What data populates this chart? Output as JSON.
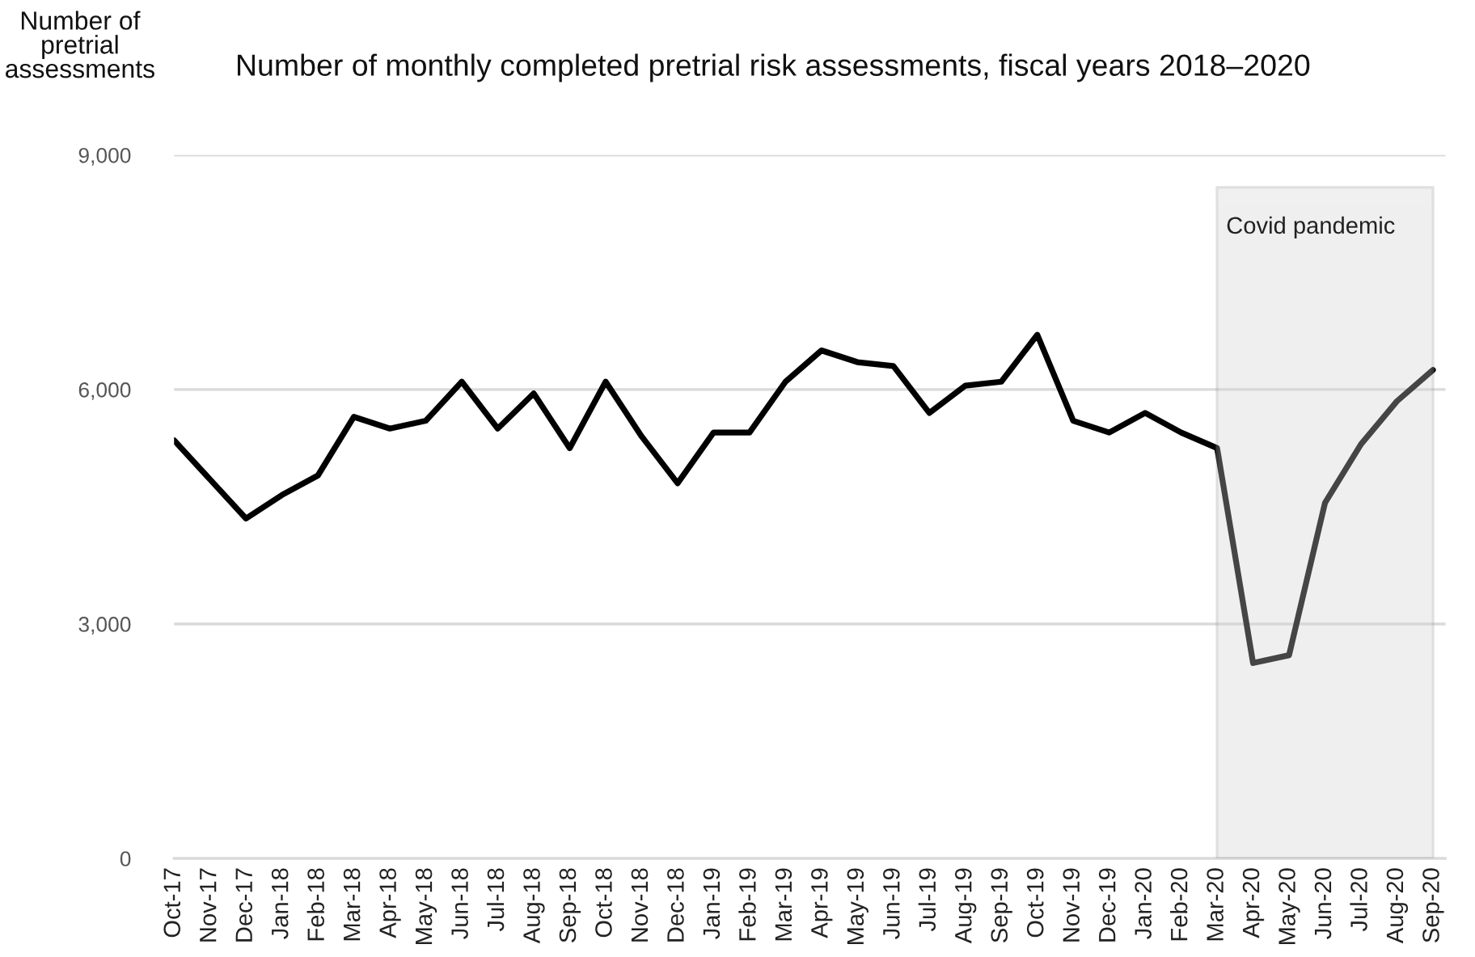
{
  "chart_data": {
    "type": "line",
    "title": "Number of monthly completed pretrial risk assessments, fiscal years 2018–2020",
    "ylabel": "Number of\npretrial\nassessments",
    "categories": [
      "Oct-17",
      "Nov-17",
      "Dec-17",
      "Jan-18",
      "Feb-18",
      "Mar-18",
      "Apr-18",
      "May-18",
      "Jun-18",
      "Jul-18",
      "Aug-18",
      "Sep-18",
      "Oct-18",
      "Nov-18",
      "Dec-18",
      "Jan-19",
      "Feb-19",
      "Mar-19",
      "Apr-19",
      "May-19",
      "Jun-19",
      "Jul-19",
      "Aug-19",
      "Sep-19",
      "Oct-19",
      "Nov-19",
      "Dec-19",
      "Jan-20",
      "Feb-20",
      "Mar-20",
      "Apr-20",
      "May-20",
      "Jun-20",
      "Jul-20",
      "Aug-20",
      "Sep-20"
    ],
    "series": [
      {
        "color": "#000000",
        "values": [
          5350,
          4850,
          4350,
          4650,
          4900,
          5650,
          5500,
          5600,
          6100,
          5500,
          5950,
          5250,
          6100,
          5400,
          4800,
          5450,
          5450,
          6100,
          6500,
          6350,
          6300,
          5700,
          6050,
          6100,
          6700,
          5600,
          5450,
          5700,
          5450,
          5250,
          2500,
          2600,
          4550,
          5300,
          5850,
          6250
        ]
      }
    ],
    "ylim": [
      0,
      9000
    ],
    "yticks": [
      0,
      {
        "value": 3000,
        "label": "3,000"
      },
      {
        "value": 6000,
        "label": "6,000"
      },
      {
        "value": 9000,
        "label": "9,000"
      }
    ],
    "grid": "y",
    "line_style": "solid",
    "bands": [
      {
        "axis": "x",
        "from": "Mar-20",
        "to": "Sep-20",
        "label": "Covid pandemic",
        "color": "#d1d1d1"
      }
    ]
  }
}
